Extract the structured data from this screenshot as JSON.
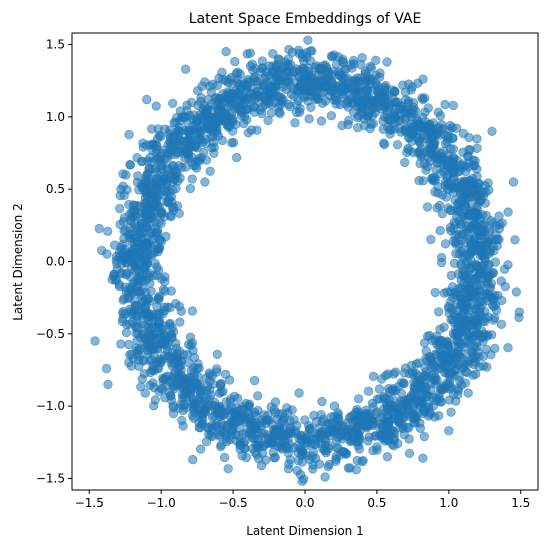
{
  "chart_data": {
    "type": "scatter",
    "title": "Latent Space Embeddings of VAE",
    "xlabel": "Latent Dimension 1",
    "ylabel": "Latent Dimension 2",
    "xlim": [
      -1.62,
      1.62
    ],
    "ylim": [
      -1.58,
      1.58
    ],
    "xticks": [
      -1.5,
      -1.0,
      -0.5,
      0.0,
      0.5,
      1.0,
      1.5
    ],
    "yticks": [
      -1.5,
      -1.0,
      -0.5,
      0.0,
      0.5,
      1.0,
      1.5
    ],
    "xtick_labels": [
      "−1.5",
      "−1.0",
      "−0.5",
      "0.0",
      "0.5",
      "1.0",
      "1.5"
    ],
    "ytick_labels": [
      "−1.5",
      "−1.0",
      "−0.5",
      "0.0",
      "0.5",
      "1.0",
      "1.5"
    ],
    "grid": false,
    "marker_color": "#1f77b4",
    "marker_alpha": 0.55,
    "series": [
      {
        "distribution": "noisy ellipse",
        "center": [
          0.02,
          0.0
        ],
        "semi_axis_x": 1.18,
        "semi_axis_y": 1.23,
        "noise_sd": 0.1,
        "n_points": 3000,
        "points": [
          [
            -1.46,
            -0.55
          ],
          [
            -1.37,
            -0.85
          ],
          [
            -1.38,
            -0.74
          ],
          [
            1.45,
            0.55
          ],
          [
            1.47,
            -0.21
          ],
          [
            1.46,
            0.15
          ],
          [
            1.49,
            -0.35
          ],
          [
            0.02,
            1.53
          ],
          [
            -0.38,
            1.44
          ],
          [
            0.57,
            1.38
          ],
          [
            -0.02,
            -1.52
          ],
          [
            0.14,
            -1.49
          ],
          [
            -0.78,
            -1.37
          ],
          [
            0.82,
            -1.36
          ],
          [
            -0.83,
            1.33
          ],
          [
            1.0,
            -1.17
          ],
          [
            -1.1,
            1.12
          ],
          [
            1.3,
            0.9
          ],
          [
            -1.28,
            0.5
          ],
          [
            1.32,
            -0.6
          ]
        ]
      }
    ]
  }
}
